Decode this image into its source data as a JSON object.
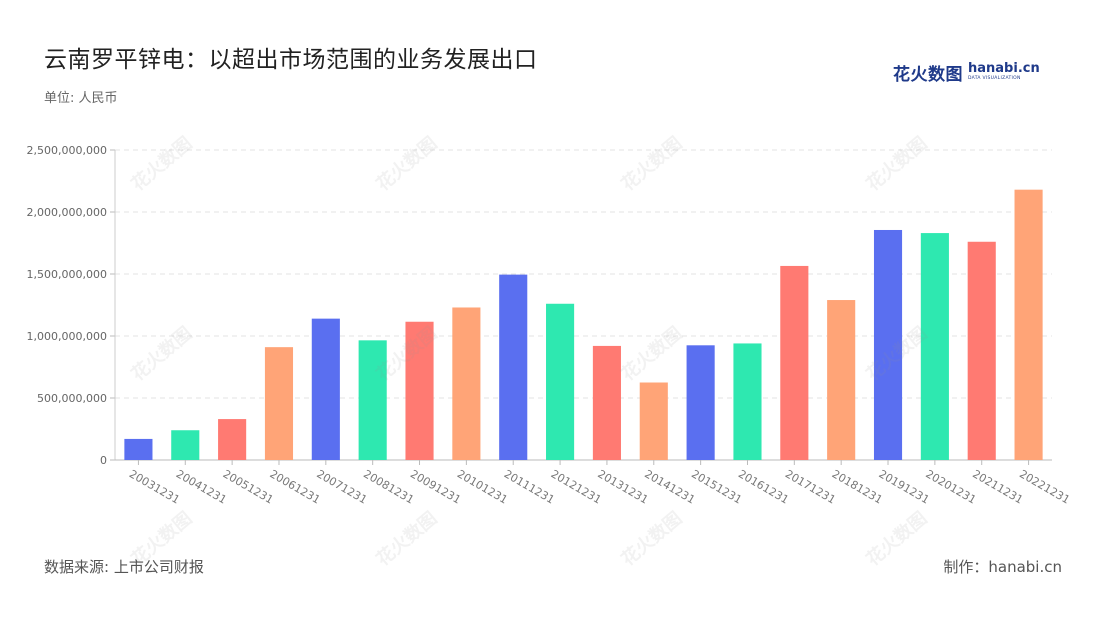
{
  "title": "云南罗平锌电：以超出市场范围的业务发展出口",
  "unit_label": "单位: 人民币",
  "logo": {
    "cn": "花火数图",
    "en": "hanabi.cn",
    "en_sub": "DATA VISUALIZATION"
  },
  "source": "数据来源: 上市公司财报",
  "credit": "制作：hanabi.cn",
  "watermark_text": "花火数图",
  "chart_data": {
    "type": "bar",
    "categories": [
      "20031231",
      "20041231",
      "20051231",
      "20061231",
      "20071231",
      "20081231",
      "20091231",
      "20101231",
      "20111231",
      "20121231",
      "20131231",
      "20141231",
      "20151231",
      "20161231",
      "20171231",
      "20181231",
      "20191231",
      "20201231",
      "20211231",
      "20221231"
    ],
    "values": [
      170000000,
      240000000,
      330000000,
      910000000,
      1140000000,
      965000000,
      1115000000,
      1230000000,
      1495000000,
      1260000000,
      920000000,
      625000000,
      925000000,
      940000000,
      1565000000,
      1290000000,
      1855000000,
      1830000000,
      1760000000,
      2180000000
    ],
    "colors": [
      "#5a6ff0",
      "#2ee8b0",
      "#ff7a72",
      "#ffa477"
    ],
    "ylim": [
      0,
      2500000000
    ],
    "yticks": [
      0,
      500000000,
      1000000000,
      1500000000,
      2000000000,
      2500000000
    ],
    "ytick_labels": [
      "0",
      "500,000,000",
      "1,000,000,000",
      "1,500,000,000",
      "2,000,000,000",
      "2,500,000,000"
    ],
    "grid": true
  }
}
